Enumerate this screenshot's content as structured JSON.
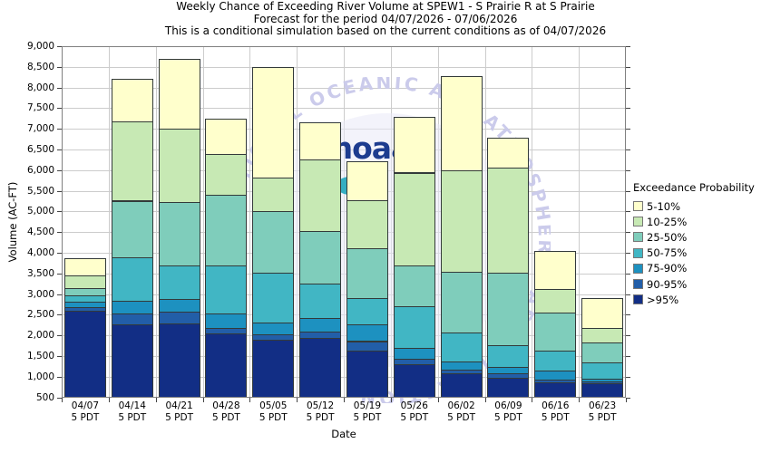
{
  "chart_data": {
    "type": "stacked-bar",
    "title": "Weekly Chance of Exceeding River Volume at SPEW1 - S Prairie R at S Prairie",
    "subtitle": "Forecast for the period 04/07/2026 - 07/06/2026",
    "note": "This is a conditional simulation based on the current conditions as of 04/07/2026",
    "xlabel": "Date",
    "ylabel": "Volume (AC-FT)",
    "ylim": [
      500,
      9000
    ],
    "grid": true,
    "legend_position": "right",
    "legend_title": "Exceedance Probability",
    "exceedance_levels": [
      "5%",
      "10%",
      "25%",
      "50%",
      "75%",
      "90%",
      "95%"
    ],
    "series": [
      {
        "name": "5-10%",
        "color": "#ffffcc"
      },
      {
        "name": "10-25%",
        "color": "#c7e9b4"
      },
      {
        "name": "25-50%",
        "color": "#7fcdbb"
      },
      {
        "name": "50-75%",
        "color": "#41b6c4"
      },
      {
        "name": "75-90%",
        "color": "#1d91c0"
      },
      {
        "name": "90-95%",
        "color": "#225ea8"
      },
      {
        "name": ">95%",
        "color": "#122e85"
      }
    ],
    "yticks": [
      {
        "value": 9000,
        "label": "9,000"
      },
      {
        "value": 8500,
        "label": "8,500"
      },
      {
        "value": 8000,
        "label": "8,000"
      },
      {
        "value": 7500,
        "label": "7,500"
      },
      {
        "value": 7000,
        "label": "7,000"
      },
      {
        "value": 6500,
        "label": "6,500"
      },
      {
        "value": 6000,
        "label": "6,000"
      },
      {
        "value": 5500,
        "label": "5,500"
      },
      {
        "value": 5000,
        "label": "5,000"
      },
      {
        "value": 4500,
        "label": "4,500"
      },
      {
        "value": 4000,
        "label": "4,000"
      },
      {
        "value": 3500,
        "label": "3,500"
      },
      {
        "value": 3000,
        "label": "3,000"
      },
      {
        "value": 2500,
        "label": "2,500"
      },
      {
        "value": 2000,
        "label": "2,000"
      },
      {
        "value": 1500,
        "label": "1,500"
      },
      {
        "value": 1000,
        "label": "1,000"
      },
      {
        "value": 500,
        "label": "500"
      }
    ],
    "weeks": [
      {
        "date": "04/07",
        "tz": "5 PDT",
        "levels": [
          3870,
          3440,
          3150,
          2970,
          2810,
          2680,
          2600
        ]
      },
      {
        "date": "04/14",
        "tz": "5 PDT",
        "levels": [
          8200,
          7190,
          5260,
          3890,
          2830,
          2520,
          2260
        ]
      },
      {
        "date": "04/21",
        "tz": "5 PDT",
        "levels": [
          8700,
          7000,
          5220,
          3690,
          2880,
          2570,
          2280
        ]
      },
      {
        "date": "04/28",
        "tz": "5 PDT",
        "levels": [
          7250,
          6400,
          5410,
          3690,
          2520,
          2170,
          2040
        ]
      },
      {
        "date": "05/05",
        "tz": "5 PDT",
        "levels": [
          8500,
          5810,
          5010,
          3510,
          2300,
          2030,
          1900
        ]
      },
      {
        "date": "05/12",
        "tz": "5 PDT",
        "levels": [
          7150,
          6250,
          4530,
          3250,
          2420,
          2090,
          1930
        ]
      },
      {
        "date": "05/19",
        "tz": "5 PDT",
        "levels": [
          6220,
          5280,
          4110,
          2900,
          2270,
          1860,
          1640
        ]
      },
      {
        "date": "05/26",
        "tz": "5 PDT",
        "levels": [
          7280,
          5940,
          3690,
          2700,
          1690,
          1440,
          1310
        ]
      },
      {
        "date": "06/02",
        "tz": "5 PDT",
        "levels": [
          8280,
          6000,
          3540,
          2070,
          1370,
          1170,
          1090
        ]
      },
      {
        "date": "06/09",
        "tz": "5 PDT",
        "levels": [
          6790,
          6050,
          3520,
          1760,
          1230,
          1080,
          980
        ]
      },
      {
        "date": "06/16",
        "tz": "5 PDT",
        "levels": [
          4050,
          3130,
          2550,
          1620,
          1140,
          920,
          870
        ]
      },
      {
        "date": "06/23",
        "tz": "5 PDT",
        "levels": [
          2910,
          2170,
          1820,
          1340,
          960,
          890,
          830
        ]
      }
    ]
  },
  "watermark": {
    "circle_text": "NATIONAL OCEANIC AND ATMOSPHERIC ADMINISTRATION",
    "wordmark": "noaa"
  }
}
